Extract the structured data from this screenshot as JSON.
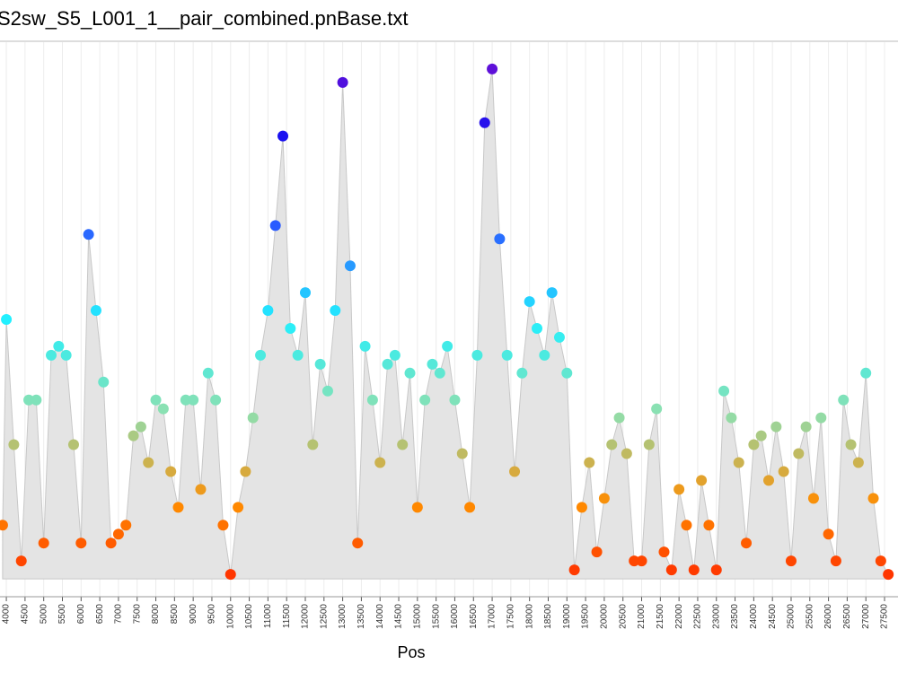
{
  "chart_data": {
    "type": "scatter",
    "title": "S2sw_S5_L001_1__pair_combined.pnBase.txt",
    "x_label": "Pos",
    "x": [
      3900,
      4000,
      4200,
      4400,
      4600,
      4800,
      5000,
      5200,
      5400,
      5600,
      5800,
      6000,
      6200,
      6400,
      6600,
      6800,
      7000,
      7200,
      7400,
      7600,
      7800,
      8000,
      8200,
      8400,
      8600,
      8800,
      9000,
      9200,
      9400,
      9600,
      9800,
      10000,
      10200,
      10400,
      10600,
      10800,
      11000,
      11200,
      11400,
      11600,
      11800,
      12000,
      12200,
      12400,
      12600,
      12800,
      13000,
      13200,
      13400,
      13600,
      13800,
      14000,
      14200,
      14400,
      14600,
      14800,
      15000,
      15200,
      15400,
      15600,
      15800,
      16000,
      16200,
      16400,
      16600,
      16800,
      17000,
      17200,
      17400,
      17600,
      17800,
      18000,
      18200,
      18400,
      18600,
      18800,
      19000,
      19200,
      19400,
      19600,
      19800,
      20000,
      20200,
      20400,
      20600,
      20800,
      21000,
      21200,
      21400,
      21600,
      21800,
      22000,
      22200,
      22400,
      22600,
      22800,
      23000,
      23200,
      23400,
      23600,
      23800,
      24000,
      24200,
      24400,
      24600,
      24800,
      25000,
      25200,
      25400,
      25600,
      25800,
      26000,
      26200,
      26400,
      26600,
      26800,
      27000,
      27200,
      27400,
      27600
    ],
    "values": [
      60,
      290,
      150,
      20,
      200,
      200,
      40,
      250,
      260,
      250,
      150,
      40,
      385,
      300,
      220,
      40,
      50,
      60,
      160,
      170,
      130,
      200,
      190,
      120,
      80,
      200,
      200,
      100,
      230,
      200,
      60,
      5,
      80,
      120,
      180,
      250,
      300,
      395,
      495,
      280,
      250,
      320,
      150,
      240,
      210,
      300,
      555,
      350,
      40,
      260,
      200,
      130,
      240,
      250,
      150,
      230,
      80,
      200,
      240,
      230,
      260,
      200,
      140,
      80,
      250,
      510,
      570,
      380,
      250,
      120,
      230,
      310,
      280,
      250,
      320,
      270,
      230,
      10,
      80,
      130,
      30,
      90,
      150,
      180,
      140,
      20,
      20,
      150,
      190,
      30,
      10,
      100,
      60,
      10,
      110,
      60,
      10,
      210,
      180,
      130,
      40,
      150,
      160,
      110,
      170,
      120,
      20,
      140,
      170,
      90,
      180,
      50,
      20,
      200,
      150,
      130,
      230,
      90,
      20,
      5
    ],
    "colors": [
      "#ff1a00",
      "#ff8c00",
      "#8de0b0",
      "#22f0ff",
      "#2a5cff",
      "#1a10f0",
      "#7a10d0"
    ],
    "area_color": "#e4e4e4",
    "xlim": [
      3830,
      27860
    ],
    "ylim": [
      -20,
      600
    ],
    "xticks": [
      4000,
      4500,
      5000,
      5500,
      6000,
      6500,
      7000,
      7500,
      8000,
      8500,
      9000,
      9500,
      10000,
      10500,
      11000,
      11500,
      12000,
      12500,
      13000,
      13500,
      14000,
      14500,
      15000,
      15500,
      16000,
      16500,
      17000,
      17500,
      18000,
      18500,
      19000,
      19500,
      20000,
      20500,
      21000,
      21500,
      22000,
      22500,
      23000,
      23500,
      24000,
      24500,
      25000,
      25500,
      26000,
      26500,
      27000,
      27500
    ],
    "grid": true
  }
}
